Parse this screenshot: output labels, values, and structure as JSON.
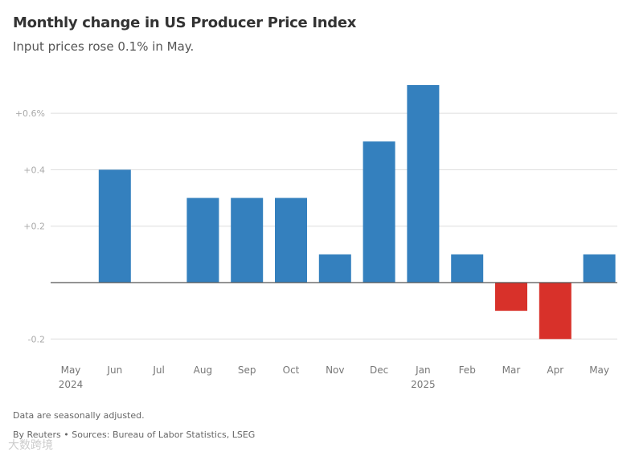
{
  "chart_data": {
    "type": "bar",
    "title": "Monthly change in US Producer Price Index",
    "subtitle": "Input prices rose 0.1% in May.",
    "categories": [
      "May",
      "Jun",
      "Jul",
      "Aug",
      "Sep",
      "Oct",
      "Nov",
      "Dec",
      "Jan",
      "Feb",
      "Mar",
      "Apr",
      "May"
    ],
    "category_sublabels": [
      "2024",
      "",
      "",
      "",
      "",
      "",
      "",
      "",
      "2025",
      "",
      "",
      "",
      ""
    ],
    "values": [
      0,
      0.4,
      0,
      0.3,
      0.3,
      0.3,
      0.1,
      0.5,
      0.7,
      0.1,
      -0.1,
      -0.2,
      0.1
    ],
    "ylim": [
      -0.25,
      0.75
    ],
    "yticks": [
      -0.2,
      0,
      0.2,
      0.4,
      0.6
    ],
    "ytick_labels": [
      "-0.2",
      "",
      "+0.2",
      "+0.4",
      "+0.6%"
    ],
    "xlabel": "",
    "ylabel": "",
    "grid": true,
    "colors": {
      "positive": "#3480be",
      "negative": "#d8312a",
      "grid": "#dddddd",
      "zero": "#555555"
    }
  },
  "footer": {
    "note": "Data are seasonally adjusted.",
    "source": "By Reuters • Sources: Bureau of Labor Statistics, LSEG",
    "watermark": "大数跨境"
  }
}
